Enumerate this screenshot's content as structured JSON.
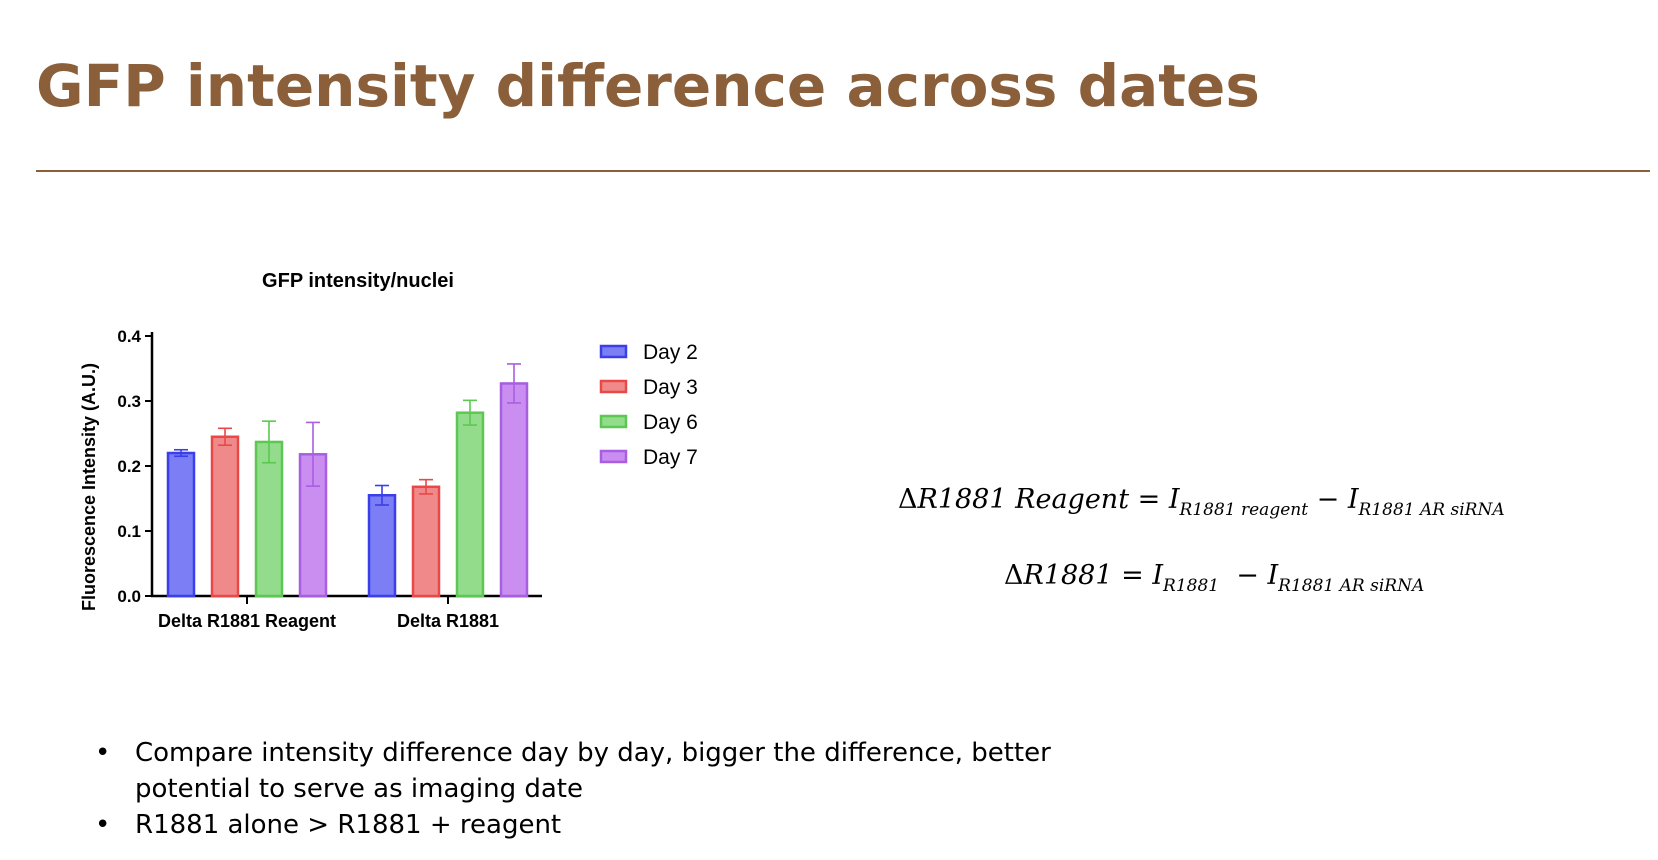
{
  "slide": {
    "title": "GFP intensity difference across dates"
  },
  "formulas": {
    "f1": {
      "delta": "Δ",
      "lhs_name": "R1881",
      "lhs_word": "Reagent",
      "eq": "=",
      "i1": "I",
      "sub1": "R1881 reagent",
      "minus": "−",
      "i2": "I",
      "sub2": "R1881 AR siRNA"
    },
    "f2": {
      "delta": "Δ",
      "lhs_name": "R1881",
      "eq": "=",
      "i1": "I",
      "sub1": "R1881",
      "minus": "−",
      "i2": "I",
      "sub2": "R1881 AR siRNA"
    }
  },
  "bullets": {
    "symbol": "•",
    "items": [
      "Compare intensity difference day by day, bigger the difference, better potential to serve as imaging date",
      "R1881 alone > R1881 + reagent"
    ]
  },
  "chart_data": {
    "type": "bar",
    "title": "GFP intensity/nuclei",
    "xlabel": "",
    "ylabel": "Fluorescence Intensity (A.U.)",
    "ylim": [
      0,
      0.4
    ],
    "yticks": [
      "0.0",
      "0.1",
      "0.2",
      "0.3",
      "0.4"
    ],
    "categories": [
      "Delta R1881 Reagent",
      "Delta R1881"
    ],
    "series": [
      {
        "name": "Day 2",
        "fill": "#7b7ef5",
        "stroke": "#3a3fe8",
        "values": [
          0.22,
          0.155
        ],
        "error": [
          0.005,
          0.015
        ]
      },
      {
        "name": "Day 3",
        "fill": "#f08a8a",
        "stroke": "#e84848",
        "values": [
          0.245,
          0.168
        ],
        "error": [
          0.013,
          0.011
        ]
      },
      {
        "name": "Day 6",
        "fill": "#92dc8c",
        "stroke": "#5cc852",
        "values": [
          0.237,
          0.282
        ],
        "error": [
          0.032,
          0.019
        ]
      },
      {
        "name": "Day 7",
        "fill": "#c98ef0",
        "stroke": "#a85ee0",
        "values": [
          0.218,
          0.327
        ],
        "error": [
          0.049,
          0.03
        ]
      }
    ],
    "legend_position": "right",
    "error_bars": true,
    "grid": false
  }
}
